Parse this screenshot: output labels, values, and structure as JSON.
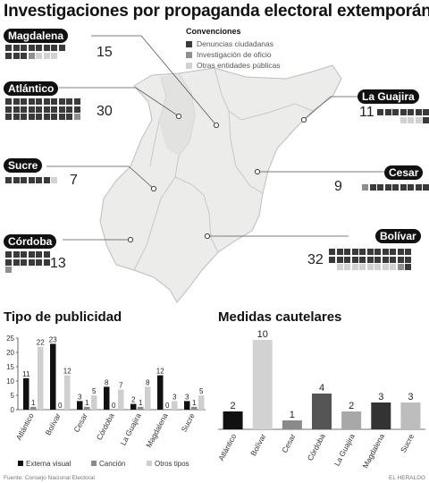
{
  "title": "Investigaciones por propaganda electoral extemporánea",
  "colors": {
    "ciudadanas": "#3a3a3a",
    "oficio": "#8f8f8f",
    "otros": "#d2d2d2",
    "map_fill": "#ececea",
    "map_stroke": "#bdbdbd"
  },
  "legend": {
    "title": "Convenciones",
    "items": [
      {
        "label": "Denuncias ciudadanas",
        "color": "#3a3a3a"
      },
      {
        "label": "Investigación de oficio",
        "color": "#8f8f8f"
      },
      {
        "label": "Otras entidades públicas",
        "color": "#d2d2d2"
      }
    ]
  },
  "regions": [
    {
      "name": "Magdalena",
      "total": "15",
      "squares": [
        "d",
        "d",
        "d",
        "d",
        "d",
        "d",
        "d",
        "d",
        "d",
        "d",
        "d",
        "o",
        "l",
        "l",
        "l"
      ]
    },
    {
      "name": "Atlántico",
      "total": "30",
      "squares": [
        "d",
        "d",
        "d",
        "d",
        "d",
        "d",
        "d",
        "d",
        "d",
        "d",
        "d",
        "d",
        "d",
        "d",
        "d",
        "d",
        "d",
        "d",
        "d",
        "d",
        "d",
        "d",
        "d",
        "d",
        "d",
        "d",
        "d",
        "d",
        "d",
        "o"
      ]
    },
    {
      "name": "Sucre",
      "total": "7",
      "squares": [
        "d",
        "d",
        "d",
        "d",
        "d",
        "d",
        "l"
      ]
    },
    {
      "name": "Córdoba",
      "total": "13",
      "squares": [
        "d",
        "d",
        "d",
        "d",
        "d",
        "d",
        "d",
        "d",
        "d",
        "d",
        "d",
        "d",
        "o"
      ]
    },
    {
      "name": "La Guajira",
      "total": "11",
      "squares": [
        "d",
        "d",
        "d",
        "d",
        "d",
        "d",
        "d",
        "d",
        "l",
        "l",
        "l"
      ]
    },
    {
      "name": "Cesar",
      "total": "9",
      "squares": [
        "d",
        "d",
        "d",
        "d",
        "d",
        "d",
        "d",
        "d",
        "o"
      ]
    },
    {
      "name": "Bolívar",
      "total": "32",
      "squares": [
        "d",
        "d",
        "d",
        "d",
        "d",
        "d",
        "d",
        "d",
        "d",
        "d",
        "d",
        "d",
        "d",
        "d",
        "d",
        "d",
        "d",
        "d",
        "d",
        "d",
        "d",
        "d",
        "d",
        "o",
        "l",
        "l",
        "l",
        "l",
        "l",
        "l",
        "l",
        "l"
      ]
    }
  ],
  "chart_data": [
    {
      "type": "bar",
      "title": "Tipo de publicidad",
      "categories": [
        "Atlántico",
        "Bolívar",
        "Cesar",
        "Córdoba",
        "La Guajira",
        "Magdalena",
        "Sucre"
      ],
      "series": [
        {
          "name": "Externa visual",
          "color": "#111111",
          "values": [
            11,
            23,
            3,
            8,
            2,
            12,
            3
          ]
        },
        {
          "name": "Canción",
          "color": "#8a8a8a",
          "values": [
            1,
            0,
            1,
            0,
            1,
            0,
            1
          ]
        },
        {
          "name": "Otros tipos",
          "color": "#cfcfcf",
          "values": [
            22,
            12,
            5,
            7,
            8,
            3,
            5
          ]
        }
      ],
      "ylim": [
        0,
        25
      ],
      "yticks": [
        "0",
        "5",
        "10",
        "15",
        "20",
        "25"
      ],
      "grid": false,
      "legend_position": "bottom"
    },
    {
      "type": "bar",
      "title": "Medidas cautelares",
      "categories": [
        "Atlántico",
        "Bolívar",
        "Cesar",
        "Córdoba",
        "La Guajira",
        "Magdalena",
        "Sucre"
      ],
      "values": [
        2,
        10,
        1,
        4,
        2,
        3,
        3
      ],
      "colors": [
        "#111111",
        "#d2d2d2",
        "#8a8a8a",
        "#555555",
        "#a8a8a8",
        "#333333",
        "#bdbdbd"
      ],
      "ylim": [
        0,
        10
      ],
      "grid": false
    }
  ],
  "footer": {
    "source": "Fuente: Consejo Nacional Electoral",
    "brand": "EL HERALDO"
  }
}
